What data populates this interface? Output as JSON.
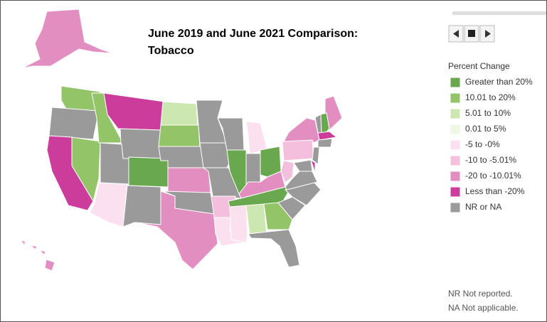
{
  "title_lines": [
    "June 2019 and June 2021 Comparison:",
    "Tobacco"
  ],
  "legend": {
    "title": "Percent Change",
    "items": [
      {
        "label": "Greater than 20%",
        "color": "#6aa84f"
      },
      {
        "label": "10.01 to 20%",
        "color": "#93c467"
      },
      {
        "label": "5.01 to 10%",
        "color": "#cde7b0"
      },
      {
        "label": "0.01 to 5%",
        "color": "#eef6e4"
      },
      {
        "label": "-5 to -0%",
        "color": "#fbe1ef"
      },
      {
        "label": "-10 to -5.01%",
        "color": "#f4bfdc"
      },
      {
        "label": "-20 to -10.01%",
        "color": "#e38ec1"
      },
      {
        "label": "Less than -20%",
        "color": "#cc3d9b"
      },
      {
        "label": "NR or NA",
        "color": "#9a9a9a"
      }
    ]
  },
  "footnotes": [
    "NR Not reported.",
    "NA Not applicable."
  ]
}
